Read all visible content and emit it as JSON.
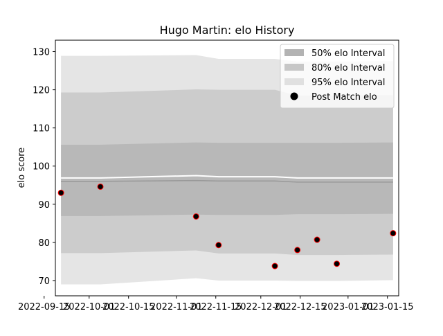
{
  "chart_data": {
    "type": "area",
    "title": "Hugo Martin: elo History",
    "xlabel": "",
    "ylabel": "elo score",
    "xlim": [
      "2022-09-19",
      "2023-01-19"
    ],
    "ylim": [
      66,
      133
    ],
    "grid": false,
    "legend_position": "top-right",
    "yticks": [
      70,
      80,
      90,
      100,
      110,
      120,
      130
    ],
    "xticks": [
      "2022-09-15",
      "2022-10-01",
      "2022-10-15",
      "2022-11-01",
      "2022-11-15",
      "2022-12-01",
      "2022-12-15",
      "2023-01-01",
      "2023-01-15"
    ],
    "bands": [
      {
        "name": "95% elo Interval",
        "color": "#e5e5e5",
        "x": [
          "2022-09-21",
          "2022-10-05",
          "2022-11-08",
          "2022-11-16",
          "2022-12-06",
          "2022-12-14",
          "2022-12-21",
          "2022-12-28",
          "2023-01-17"
        ],
        "lower": [
          69.0,
          69.0,
          70.6,
          70.0,
          70.0,
          69.9,
          69.9,
          69.9,
          70.1
        ],
        "upper": [
          128.9,
          128.9,
          129.1,
          128.1,
          128.1,
          127.4,
          127.4,
          127.4,
          127.5
        ]
      },
      {
        "name": "80% elo Interval",
        "color": "#cccccc",
        "x": [
          "2022-09-21",
          "2022-10-05",
          "2022-11-08",
          "2022-11-16",
          "2022-12-06",
          "2022-12-14",
          "2022-12-21",
          "2022-12-28",
          "2023-01-17"
        ],
        "lower": [
          77.2,
          77.2,
          77.9,
          77.1,
          77.1,
          76.7,
          76.7,
          76.7,
          76.8
        ],
        "upper": [
          119.3,
          119.3,
          120.1,
          120.0,
          120.0,
          118.5,
          118.5,
          118.5,
          118.6
        ]
      },
      {
        "name": "50% elo Interval",
        "color": "#b8b8b8",
        "x": [
          "2022-09-21",
          "2022-10-05",
          "2022-11-08",
          "2022-11-16",
          "2022-12-06",
          "2022-12-14",
          "2022-12-21",
          "2022-12-28",
          "2023-01-17"
        ],
        "lower": [
          86.9,
          86.9,
          87.3,
          87.2,
          87.2,
          87.4,
          87.4,
          87.4,
          87.5
        ],
        "upper": [
          105.6,
          105.6,
          106.2,
          106.1,
          106.1,
          106.1,
          106.1,
          106.1,
          106.2
        ]
      }
    ],
    "mean_line": {
      "x": [
        "2022-09-21",
        "2022-10-05",
        "2022-11-08",
        "2022-11-16",
        "2022-12-06",
        "2022-12-14",
        "2022-12-21",
        "2022-12-28",
        "2023-01-17"
      ],
      "y": [
        96.0,
        96.0,
        96.2,
        96.1,
        96.1,
        95.8,
        95.8,
        95.8,
        95.8
      ],
      "color": "#999999"
    },
    "white_line": {
      "x": [
        "2022-09-21",
        "2022-10-05",
        "2022-11-08",
        "2022-11-16",
        "2022-12-06",
        "2022-12-14",
        "2022-12-21",
        "2022-12-28",
        "2023-01-17"
      ],
      "y": [
        96.9,
        96.9,
        97.5,
        97.2,
        97.2,
        96.9,
        96.9,
        96.9,
        96.9
      ],
      "color": "#ffffff"
    },
    "points": {
      "name": "Post Match elo",
      "fill": "#000000",
      "edge": "#ff0000",
      "x": [
        "2022-09-21",
        "2022-10-05",
        "2022-11-08",
        "2022-11-16",
        "2022-12-06",
        "2022-12-14",
        "2022-12-21",
        "2022-12-28",
        "2023-01-17"
      ],
      "y": [
        93.0,
        94.6,
        86.8,
        79.3,
        73.8,
        78.0,
        80.7,
        74.4,
        82.4
      ]
    },
    "legend": [
      {
        "label": "50% elo Interval",
        "kind": "patch",
        "color": "#b3b3b3"
      },
      {
        "label": "80% elo Interval",
        "kind": "patch",
        "color": "#c7c7c7"
      },
      {
        "label": "95% elo Interval",
        "kind": "patch",
        "color": "#e0e0e0"
      },
      {
        "label": "Post Match elo",
        "kind": "marker",
        "color": "#000000"
      }
    ]
  }
}
